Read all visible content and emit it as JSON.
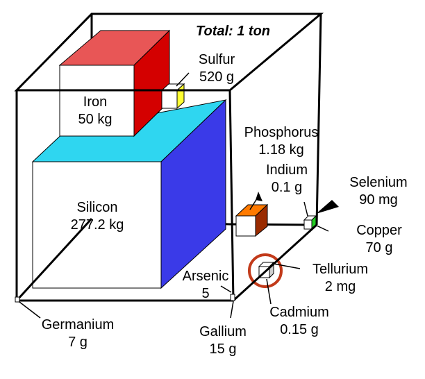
{
  "title": "Total: 1 ton",
  "colors": {
    "iron_top": "#e85656",
    "iron_side": "#d40000",
    "silicon_top": "#2fd6f0",
    "silicon_side": "#3a3ae8",
    "sulfur_side": "#ffff33",
    "phosphorus_top": "#ff7a00",
    "phosphorus_side": "#9a2b00",
    "selenium_side": "#22cc22",
    "highlight_circle": "#c23a1a"
  },
  "elements": [
    {
      "id": "iron",
      "name": "Iron",
      "amount": "50 kg"
    },
    {
      "id": "sulfur",
      "name": "Sulfur",
      "amount": "520 g"
    },
    {
      "id": "silicon",
      "name": "Silicon",
      "amount": "277.2 kg"
    },
    {
      "id": "phosphorus",
      "name": "Phosphorus",
      "amount": "1.18 kg"
    },
    {
      "id": "indium",
      "name": "Indium",
      "amount": "0.1 g"
    },
    {
      "id": "selenium",
      "name": "Selenium",
      "amount": "90 mg"
    },
    {
      "id": "copper",
      "name": "Copper",
      "amount": "70 g"
    },
    {
      "id": "tellurium",
      "name": "Tellurium",
      "amount": "2 mg"
    },
    {
      "id": "arsenic",
      "name": "Arsenic",
      "amount": "5"
    },
    {
      "id": "cadmium",
      "name": "Cadmium",
      "amount": "0.15 g"
    },
    {
      "id": "germanium",
      "name": "Germanium",
      "amount": "7 g"
    },
    {
      "id": "gallium",
      "name": "Gallium",
      "amount": "15 g"
    }
  ]
}
